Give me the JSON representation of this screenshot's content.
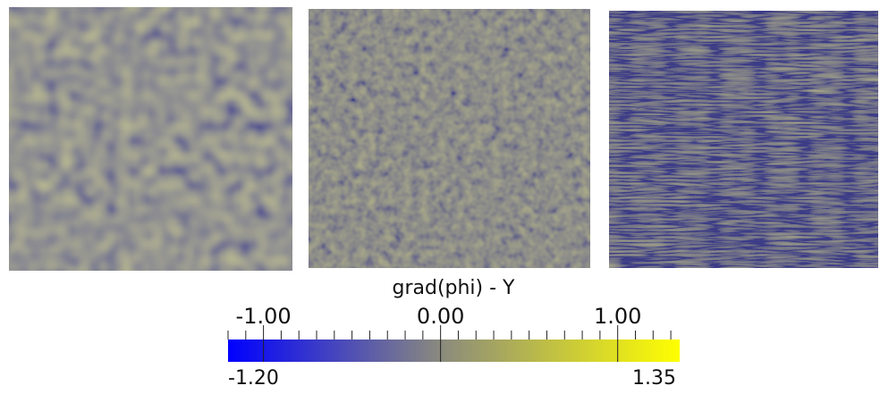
{
  "chart_data": {
    "type": "colorbar",
    "title": "grad(phi) - Y",
    "lim": [
      -1.2,
      1.35
    ],
    "lim_labels": [
      "-1.20",
      "1.35"
    ],
    "ticks": [
      {
        "value": -1,
        "label": "-1.00"
      },
      {
        "value": 0,
        "label": "0.00"
      },
      {
        "value": 1,
        "label": "1.00"
      }
    ],
    "minor_ticks": [
      -1.2,
      -1.1,
      -0.9,
      -0.8,
      -0.7,
      -0.6,
      -0.5,
      -0.4,
      -0.3,
      -0.2,
      -0.1,
      0.1,
      0.2,
      0.3,
      0.4,
      0.5,
      0.6,
      0.7,
      0.8,
      0.9,
      1.1,
      1.2,
      1.3
    ],
    "colors": [
      "#0000ff",
      "#8a8a7e",
      "#ffff00"
    ]
  }
}
